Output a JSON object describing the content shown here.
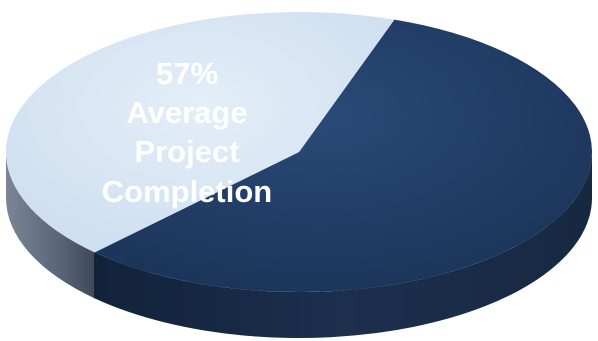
{
  "chart_data": {
    "type": "pie",
    "style": "3d",
    "slices": [
      {
        "value": 57,
        "color": "#1f3a60",
        "side_color": "#1a2a44"
      },
      {
        "value": 43,
        "color": "#d6e6f4",
        "side_color": "#606c7c"
      }
    ],
    "annotation": {
      "value_text": "57%",
      "lines": [
        "Average",
        "Project",
        "Completion"
      ]
    }
  }
}
